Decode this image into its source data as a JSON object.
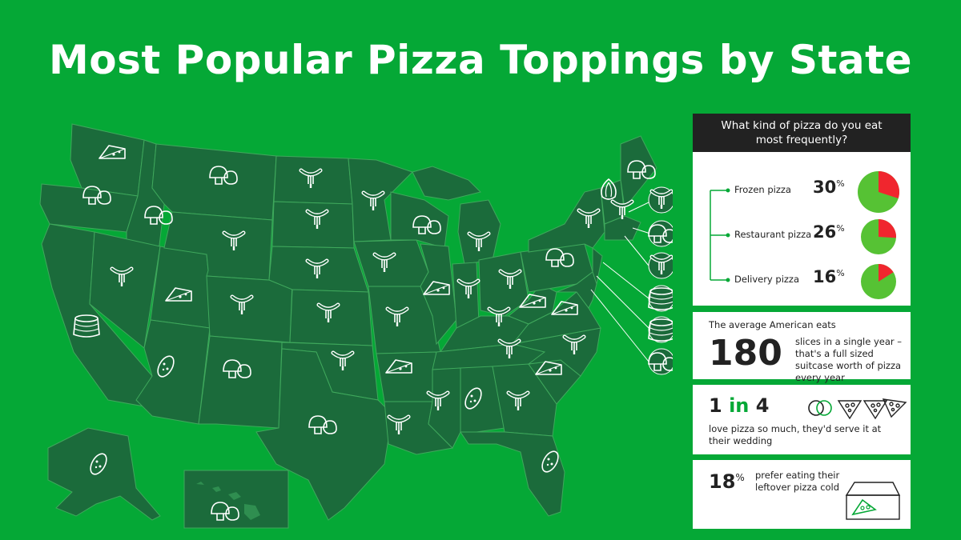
{
  "title": "Most Popular Pizza Toppings by State",
  "survey": {
    "question": "What kind of pizza do you eat most frequently?",
    "options": [
      {
        "label": "Frozen pizza",
        "percent": "30",
        "share": 0.3
      },
      {
        "label": "Restaurant pizza",
        "percent": "26",
        "share": 0.26
      },
      {
        "label": "Delivery pizza",
        "percent": "16",
        "share": 0.16
      }
    ],
    "pct_sign": "%"
  },
  "stat_slices": {
    "lead": "The average American eats",
    "value": "180",
    "text": "slices in a single year – that's a full sized suitcase worth of pizza every year"
  },
  "stat_wedding": {
    "num": "1",
    "in": "in",
    "den": "4",
    "text": "love pizza so much, they'd serve it at their wedding"
  },
  "stat_cold": {
    "value": "18",
    "pct_sign": "%",
    "text": "prefer eating their leftover pizza cold"
  },
  "colors": {
    "background": "#05a836",
    "state_fill": "#1b6b3b",
    "state_border": "#3fa85c",
    "pie_green": "#56c234",
    "pie_red": "#f0262e",
    "dark_header": "#222222"
  },
  "topping_icons": [
    "sausage-icon",
    "mushroom-icon",
    "cheese-icon",
    "pepperoni-icon",
    "onion-icon",
    "pineapple-icon"
  ]
}
